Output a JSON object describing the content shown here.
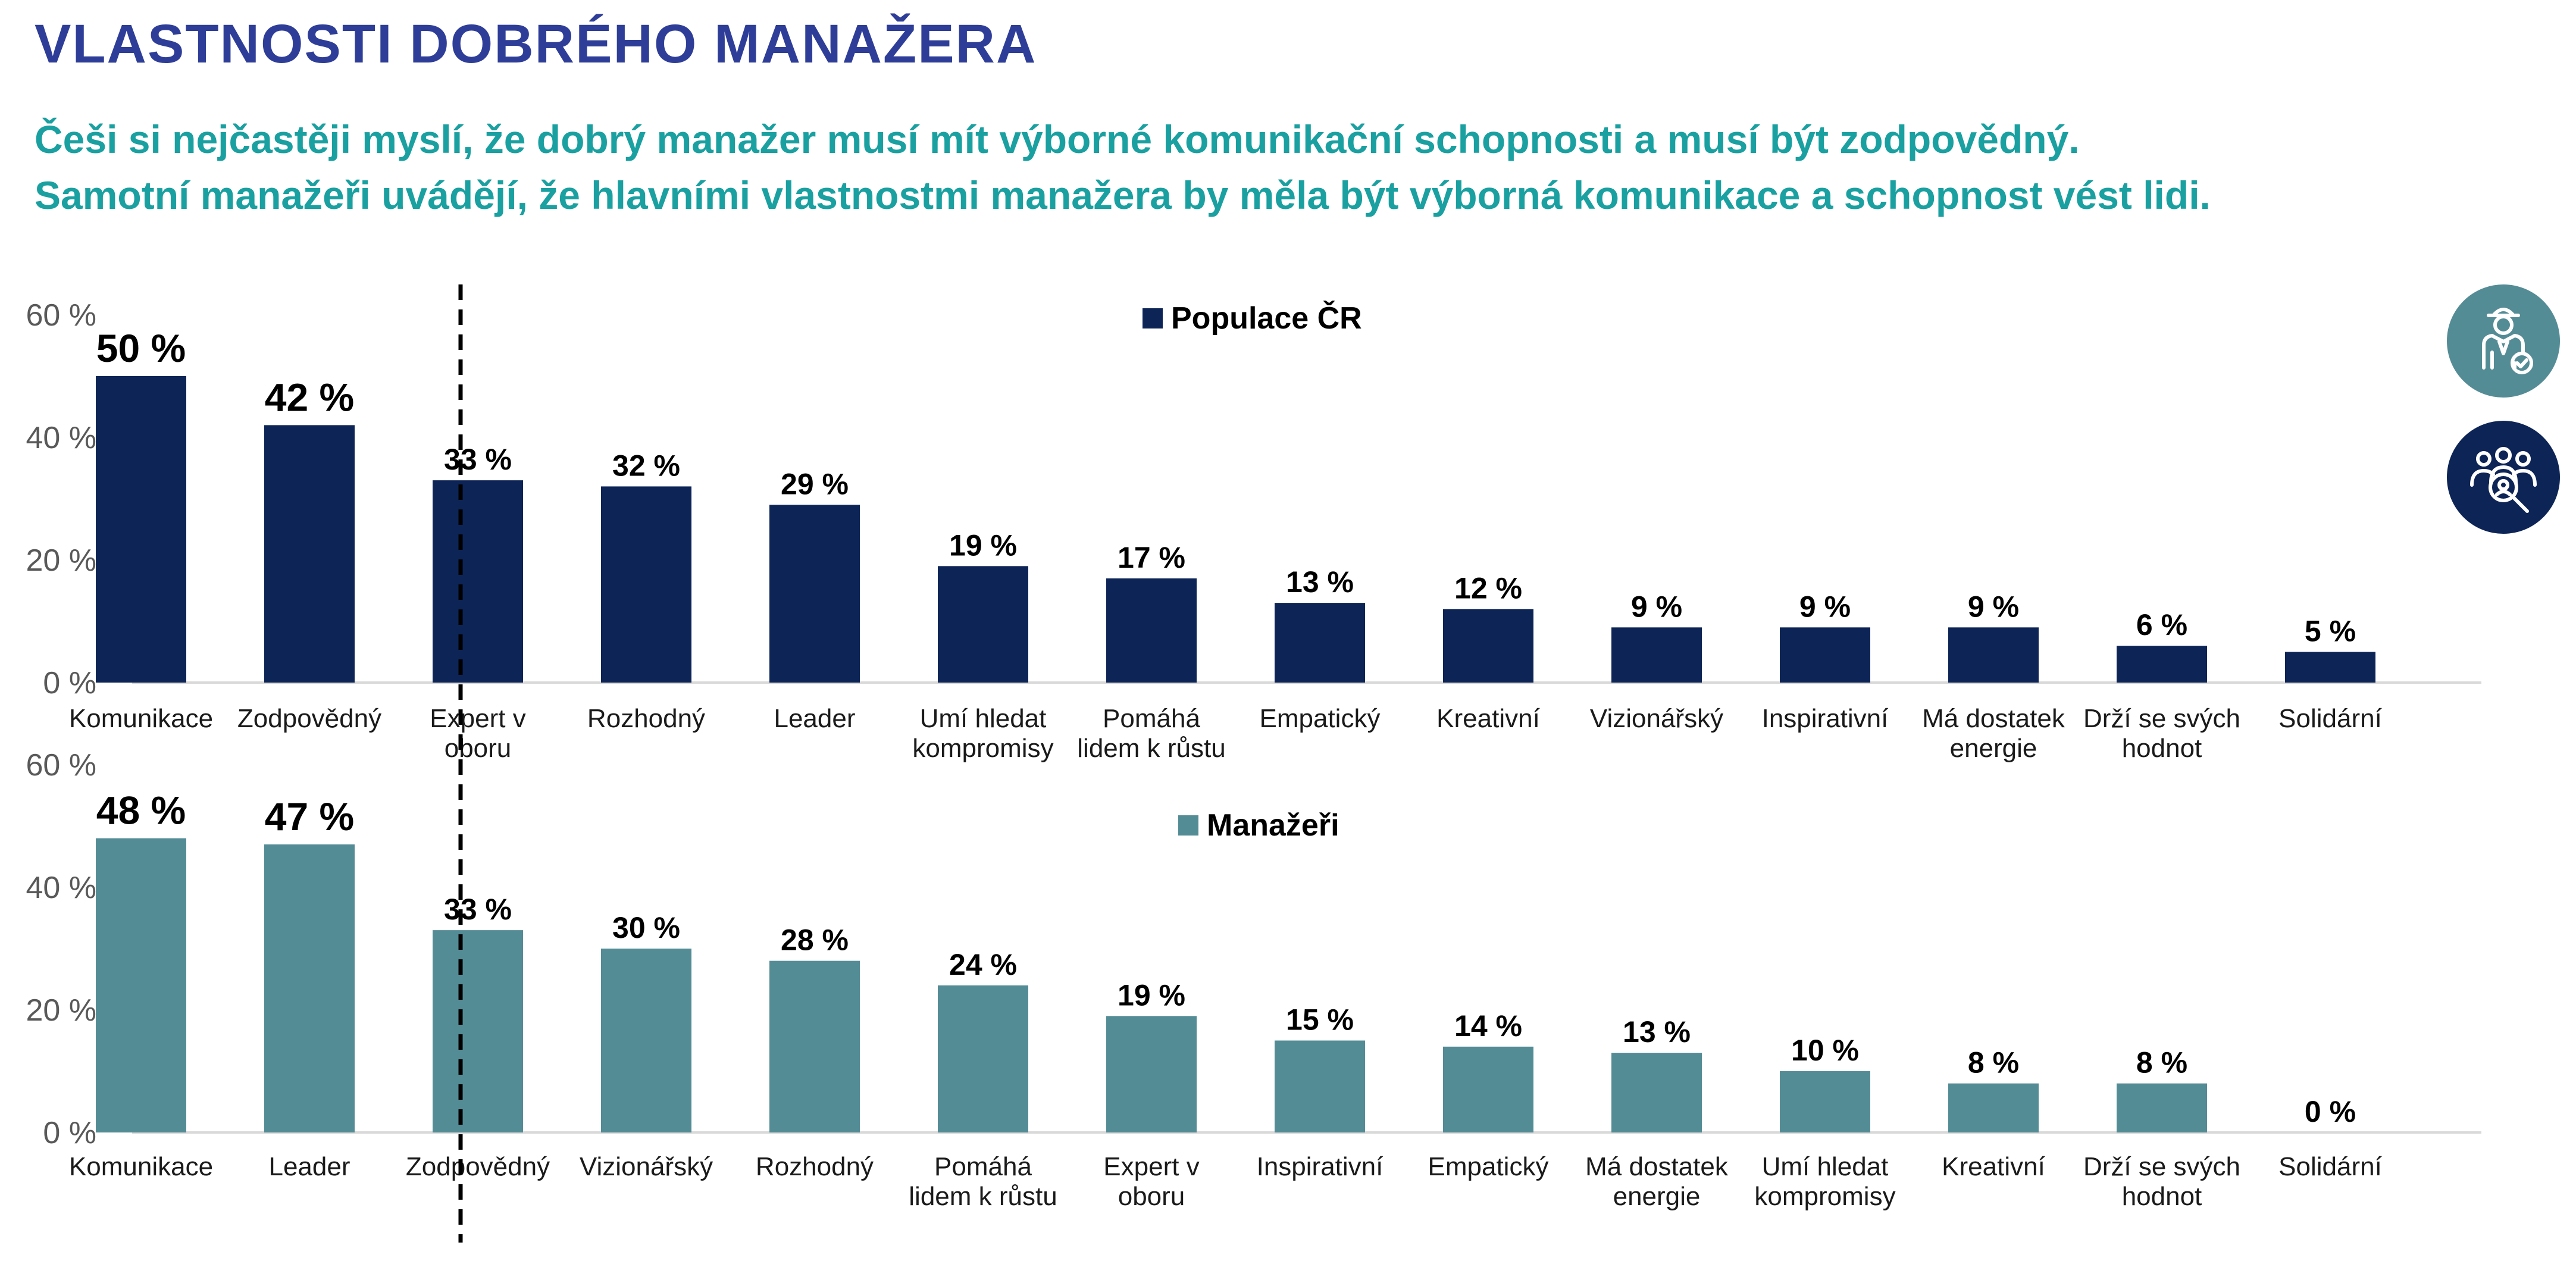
{
  "title": "VLASTNOSTI DOBRÉHO MANAŽERA",
  "subtitle_line1": "Češi si nejčastěji myslí, že dobrý manažer musí mít výborné komunikační schopnosti a musí být zodpovědný.",
  "subtitle_line2": "Samotní manažeři uvádějí, že hlavními vlastnostmi manažera by měla být výborná komunikace a schopnost vést lidi.",
  "colors": {
    "title": "#2E3E98",
    "subtitle": "#1AA0A0",
    "population": "#0D2456",
    "managers": "#548C96",
    "icon_manager_bg": "#548C96",
    "icon_team_bg": "#0D2456"
  },
  "icons": [
    "manager-icon",
    "team-search-icon"
  ],
  "chart_data": [
    {
      "type": "bar",
      "series": [
        {
          "name": "Populace ČR",
          "values": [
            50,
            42,
            33,
            32,
            29,
            19,
            17,
            13,
            12,
            9,
            9,
            9,
            6,
            5
          ],
          "labels": [
            "50 %",
            "42 %",
            "33 %",
            "32 %",
            "29 %",
            "19 %",
            "17 %",
            "13 %",
            "12 %",
            "9 %",
            "9 %",
            "9 %",
            "6 %",
            "5 %"
          ]
        }
      ],
      "categories": [
        [
          "Komunikace"
        ],
        [
          "Zodpovědný"
        ],
        [
          "Expert v",
          "oboru"
        ],
        [
          "Rozhodný"
        ],
        [
          "Leader"
        ],
        [
          "Umí hledat",
          "kompromisy"
        ],
        [
          "Pomáhá",
          "lidem k růstu"
        ],
        [
          "Empatický"
        ],
        [
          "Kreativní"
        ],
        [
          "Vizionářský"
        ],
        [
          "Inspirativní"
        ],
        [
          "Má dostatek",
          "energie"
        ],
        [
          "Drží se svých",
          "hodnot"
        ],
        [
          "Solidární"
        ]
      ],
      "ylim": [
        0,
        60
      ],
      "yticks": [
        "0 %",
        "20 %",
        "40 %",
        "60 %"
      ],
      "ytick_values": [
        0,
        20,
        40,
        60
      ],
      "legend": "Populace ČR",
      "legend_position": "top-center",
      "highlighted_top": 2
    },
    {
      "type": "bar",
      "series": [
        {
          "name": "Manažeři",
          "values": [
            48,
            47,
            33,
            30,
            28,
            24,
            19,
            15,
            14,
            13,
            10,
            8,
            8,
            0
          ],
          "labels": [
            "48 %",
            "47 %",
            "33 %",
            "30 %",
            "28 %",
            "24 %",
            "19 %",
            "15 %",
            "14 %",
            "13 %",
            "10 %",
            "8 %",
            "8 %",
            "0 %"
          ]
        }
      ],
      "categories": [
        [
          "Komunikace"
        ],
        [
          "Leader"
        ],
        [
          "Zodpovědný"
        ],
        [
          "Vizionářský"
        ],
        [
          "Rozhodný"
        ],
        [
          "Pomáhá",
          "lidem k růstu"
        ],
        [
          "Expert v",
          "oboru"
        ],
        [
          "Inspirativní"
        ],
        [
          "Empatický"
        ],
        [
          "Má dostatek",
          "energie"
        ],
        [
          "Umí hledat",
          "kompromisy"
        ],
        [
          "Kreativní"
        ],
        [
          "Drží se svých",
          "hodnot"
        ],
        [
          "Solidární"
        ]
      ],
      "ylim": [
        0,
        60
      ],
      "yticks": [
        "0 %",
        "20 %",
        "40 %",
        "60 %"
      ],
      "ytick_values": [
        0,
        20,
        40,
        60
      ],
      "legend": "Manažeři",
      "legend_position": "top-center",
      "highlighted_top": 2
    }
  ]
}
